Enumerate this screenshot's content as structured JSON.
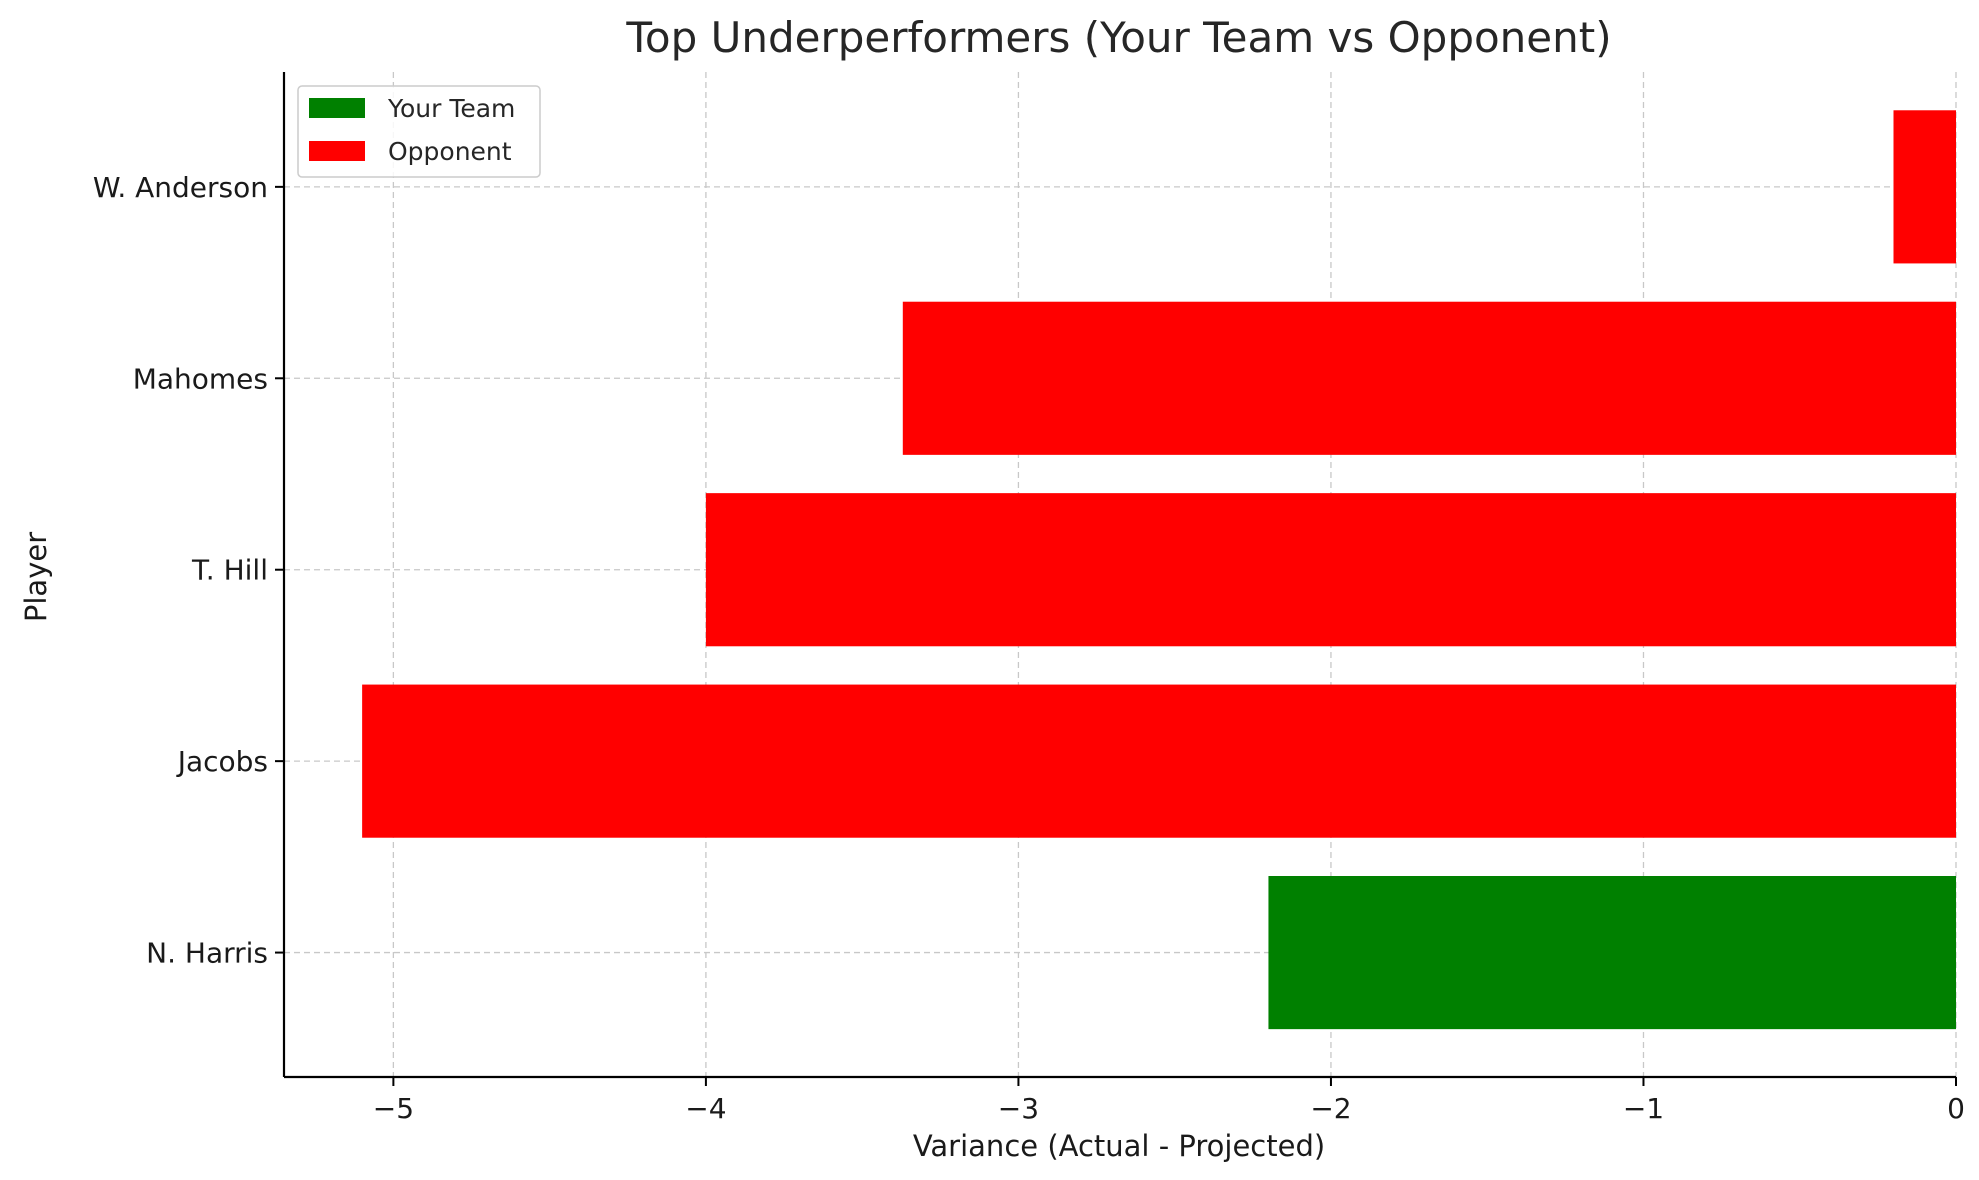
{
  "chart_data": {
    "type": "bar",
    "orientation": "horizontal",
    "title": "Top Underperformers (Your Team vs Opponent)",
    "xlabel": "Variance (Actual - Projected)",
    "ylabel": "Player",
    "xlim": [
      -5.35,
      0
    ],
    "xticks": [
      -5,
      -4,
      -3,
      -2,
      -1,
      0
    ],
    "xtick_labels": [
      "−5",
      "−4",
      "−3",
      "−2",
      "−1",
      "0"
    ],
    "grid": true,
    "legend_position": "top-left",
    "legend": [
      {
        "label": "Your Team",
        "color": "#008000"
      },
      {
        "label": "Opponent",
        "color": "#ff0000"
      }
    ],
    "categories": [
      "N. Harris",
      "Jacobs",
      "T. Hill",
      "Mahomes",
      "W. Anderson"
    ],
    "values": [
      -2.2,
      -5.1,
      -4.0,
      -3.37,
      -0.2
    ],
    "groups": [
      "Your Team",
      "Opponent",
      "Opponent",
      "Opponent",
      "Opponent"
    ]
  }
}
